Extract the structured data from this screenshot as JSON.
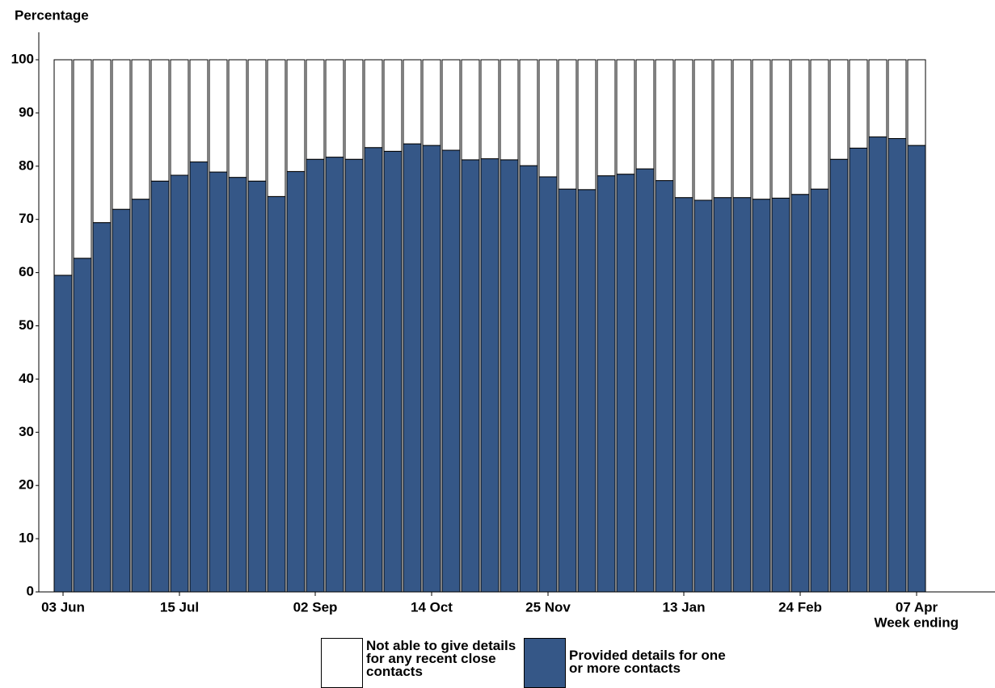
{
  "chart_data": {
    "type": "stacked_bar",
    "y_label": "Percentage",
    "x_label": "Week ending",
    "categories": [
      "03 Jun",
      null,
      null,
      null,
      null,
      null,
      "15 Jul",
      null,
      null,
      null,
      null,
      null,
      null,
      "02 Sep",
      null,
      null,
      null,
      null,
      null,
      "14 Oct",
      null,
      null,
      null,
      null,
      null,
      "25 Nov",
      null,
      null,
      null,
      null,
      null,
      null,
      "13 Jan",
      null,
      null,
      null,
      null,
      null,
      "24 Feb",
      null,
      null,
      null,
      null,
      null,
      "07 Apr"
    ],
    "series": [
      {
        "name": "Not able to give details for any recent close contacts",
        "color": "#ffffff",
        "values": [
          40.5,
          37.3,
          30.6,
          28.1,
          26.2,
          22.8,
          21.7,
          19.2,
          21.1,
          22.1,
          22.8,
          25.7,
          21.0,
          18.7,
          18.3,
          18.7,
          16.5,
          17.2,
          15.8,
          16.1,
          17.0,
          18.8,
          18.6,
          18.8,
          19.9,
          22.0,
          24.3,
          24.4,
          21.8,
          21.5,
          20.5,
          22.7,
          25.9,
          26.4,
          25.9,
          25.9,
          26.2,
          26.0,
          25.3,
          24.3,
          18.7,
          16.6,
          14.5,
          14.8,
          16.1
        ]
      },
      {
        "name": "Provided details for one or more contacts",
        "color": "#355787",
        "values": [
          59.5,
          62.7,
          69.4,
          71.9,
          73.8,
          77.2,
          78.3,
          80.8,
          78.9,
          77.9,
          77.2,
          74.3,
          79.0,
          81.3,
          81.7,
          81.3,
          83.5,
          82.8,
          84.2,
          83.9,
          83.0,
          81.2,
          81.4,
          81.2,
          80.1,
          78.0,
          75.7,
          75.6,
          78.2,
          78.5,
          79.5,
          77.3,
          74.1,
          73.6,
          74.1,
          74.1,
          73.8,
          74.0,
          74.7,
          75.7,
          81.3,
          83.4,
          85.5,
          85.2,
          83.9
        ]
      }
    ],
    "ylim": [
      0,
      100
    ],
    "yticks": [
      0,
      10,
      20,
      30,
      40,
      50,
      60,
      70,
      80,
      90,
      100
    ],
    "grid": false
  }
}
